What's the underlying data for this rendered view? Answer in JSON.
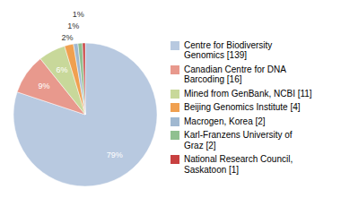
{
  "chart_data": {
    "type": "pie",
    "categories": [
      "Centre for Biodiversity\nGenomics [139]",
      "Canadian Centre for DNA\nBarcoding [16]",
      "Mined from GenBank, NCBI [11]",
      "Beijing Genomics Institute [4]",
      "Macrogen, Korea [2]",
      "Karl-Franzens University of\nGraz [2]",
      "National Research Council,\nSaskatoon [1]"
    ],
    "values": [
      79,
      9,
      6,
      2,
      1,
      1,
      0.6
    ],
    "value_labels": [
      "79%",
      "9%",
      "6%",
      "2%",
      "1%",
      "1%",
      null
    ],
    "colors": [
      "#b8c9e0",
      "#e8998d",
      "#c8d89a",
      "#f0a050",
      "#a0b8d0",
      "#90c090",
      "#c84040"
    ],
    "data_labels": true,
    "legend": "right"
  }
}
